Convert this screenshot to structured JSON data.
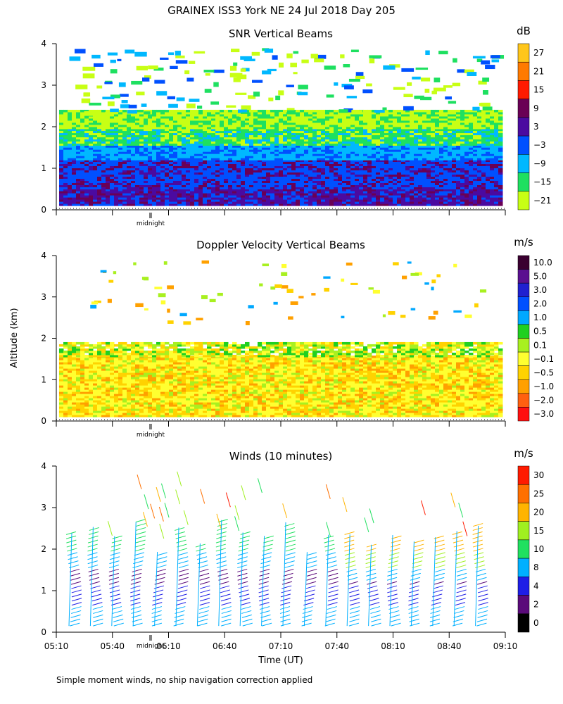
{
  "header": {
    "title": "GRAINEX ISS3 York NE  24 Jul 2018 Day 205",
    "shared_ylabel": "Altitude (km)",
    "xlabel": "Time (UT)",
    "footnote": "Simple moment winds, no ship navigation correction applied",
    "midnight_label": "midnight"
  },
  "chart_data": [
    {
      "type": "heatmap",
      "title": "SNR Vertical Beams",
      "ylabel": "Altitude (km)",
      "ylim": [
        0,
        4
      ],
      "yticks": [
        "0",
        "1",
        "2",
        "3",
        "4"
      ],
      "x_start": "05:10",
      "x_end": "09:10",
      "colorbar_unit": "dB",
      "colorbar_labels": [
        "27",
        "21",
        "15",
        "9",
        "3",
        "−3",
        "−9",
        "−15",
        "−21"
      ],
      "colorbar_colors": [
        "#ffc61a",
        "#ff7a00",
        "#ff1a00",
        "#6a0055",
        "#4b0aa0",
        "#0050ff",
        "#00b8ff",
        "#1ee060",
        "#c8ff14"
      ]
    },
    {
      "type": "heatmap",
      "title": "Doppler Velocity Vertical Beams",
      "ylabel": "Altitude (km)",
      "ylim": [
        0,
        4
      ],
      "yticks": [
        "0",
        "1",
        "2",
        "3",
        "4"
      ],
      "x_start": "05:10",
      "x_end": "09:10",
      "colorbar_unit": "m/s",
      "colorbar_labels": [
        "10.0",
        "5.0",
        "3.0",
        "2.0",
        "1.0",
        "0.5",
        "0.1",
        "−0.1",
        "−0.5",
        "−1.0",
        "−2.0",
        "−3.0"
      ],
      "colorbar_colors": [
        "#3a0030",
        "#5a1090",
        "#2020d0",
        "#0050ff",
        "#00a8ff",
        "#20d020",
        "#a8f020",
        "#ffff30",
        "#ffd200",
        "#ffa000",
        "#ff6010",
        "#ff1010"
      ]
    },
    {
      "type": "scatter",
      "title": "Winds (10 minutes)",
      "ylabel": "Altitude (km)",
      "xlabel": "Time (UT)",
      "ylim": [
        0,
        4
      ],
      "yticks": [
        "0",
        "1",
        "2",
        "3",
        "4"
      ],
      "x_tick_labels": [
        "05:10",
        "05:40",
        "06:10",
        "06:40",
        "07:10",
        "07:40",
        "08:10",
        "08:40",
        "09:10"
      ],
      "colorbar_unit": "m/s",
      "colorbar_labels": [
        "30",
        "25",
        "20",
        "15",
        "10",
        "8",
        "4",
        "2",
        "0"
      ],
      "colorbar_colors": [
        "#ff1a00",
        "#ff7000",
        "#ffb400",
        "#a0f020",
        "#20e060",
        "#00b0ff",
        "#1e1ee6",
        "#5a0a7a",
        "#000000"
      ]
    }
  ]
}
